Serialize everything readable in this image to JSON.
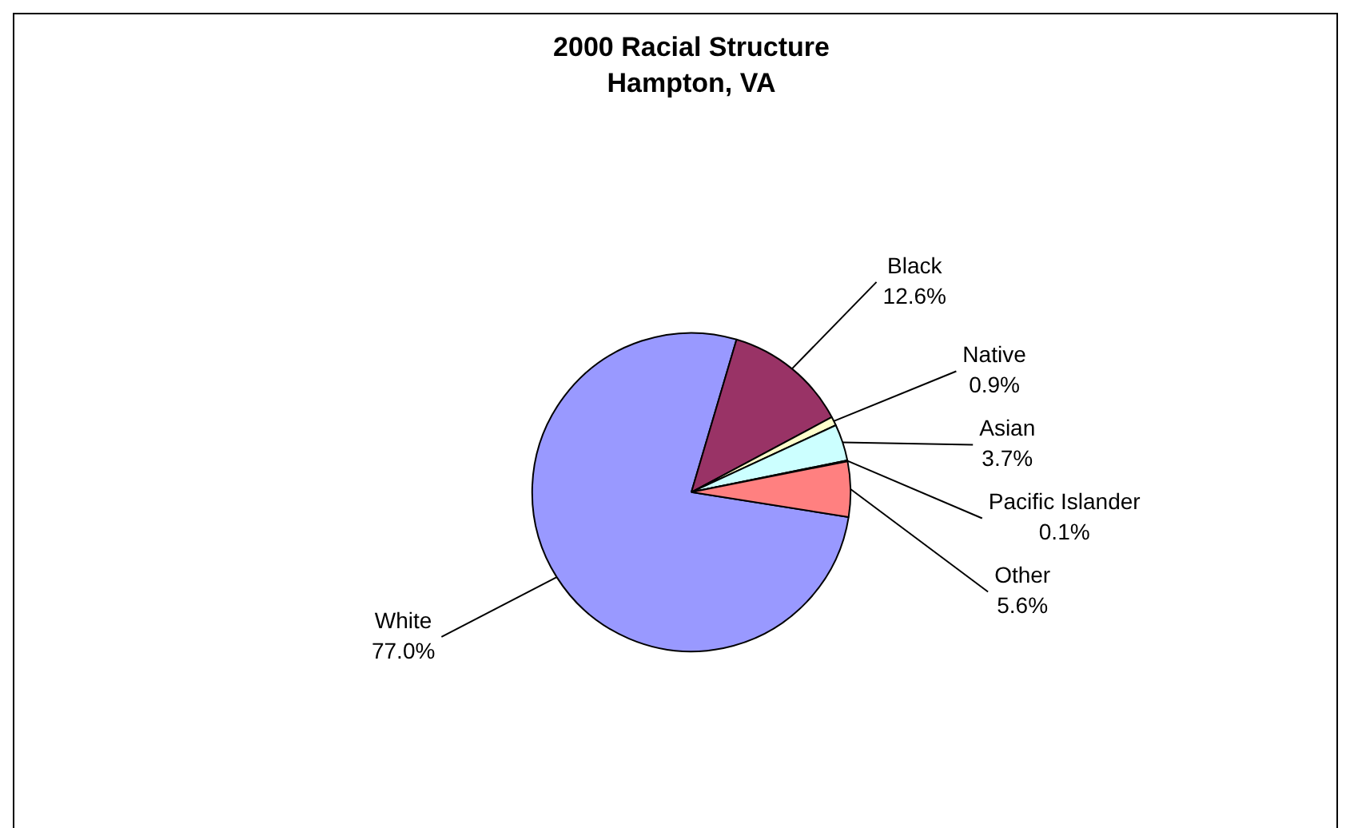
{
  "chart_data": {
    "type": "pie",
    "title": "2000 Racial Structure",
    "subtitle": "Hampton, VA",
    "categories": [
      "White",
      "Black",
      "Native",
      "Asian",
      "Pacific Islander",
      "Other"
    ],
    "values": [
      77.0,
      12.6,
      0.9,
      3.7,
      0.1,
      5.6
    ],
    "value_labels": [
      "77.0%",
      "12.6%",
      "0.9%",
      "3.7%",
      "0.1%",
      "5.6%"
    ],
    "colors": [
      "#9999ff",
      "#993366",
      "#ffffcc",
      "#ccffff",
      "#660066",
      "#ff8080"
    ],
    "legend": false
  }
}
